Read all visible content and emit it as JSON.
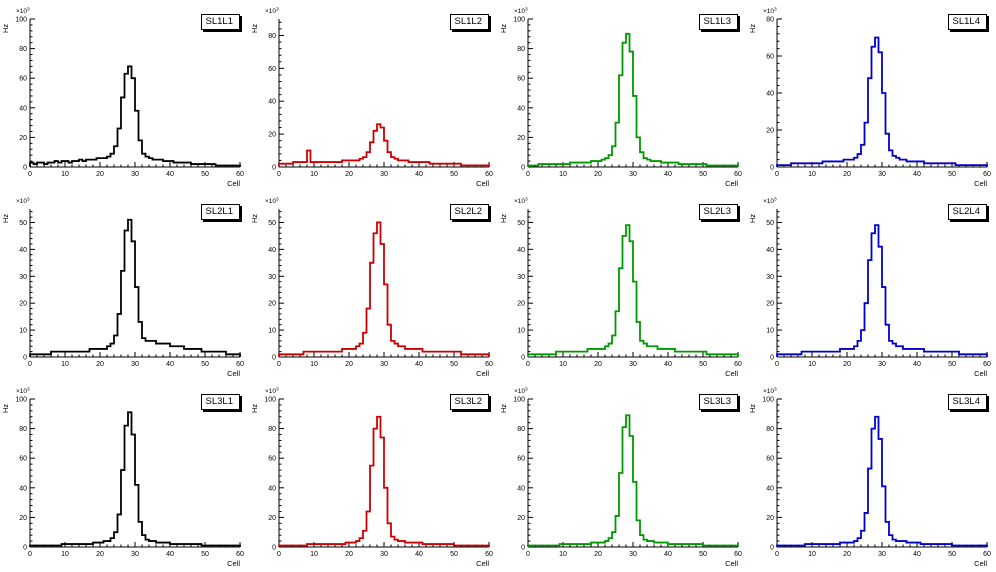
{
  "page": {
    "background": "#ffffff"
  },
  "chart_data": [
    {
      "type": "bar",
      "title": "SL1L1",
      "color": "#000000",
      "xlabel": "Cell",
      "ylabel": "Hz",
      "y_scale_base": "×10",
      "y_scale_exp": "3",
      "xlim": [
        0,
        60
      ],
      "ylim": [
        0,
        100
      ],
      "xticks": [
        0,
        10,
        20,
        30,
        40,
        50,
        60
      ],
      "yticks": [
        0,
        20,
        40,
        60,
        80,
        100
      ],
      "bin_width": 1,
      "values": [
        3,
        2,
        3,
        3,
        2,
        3,
        3,
        4,
        3,
        4,
        4,
        3,
        4,
        4,
        5,
        4,
        5,
        5,
        5,
        6,
        6,
        6,
        7,
        9,
        14,
        26,
        47,
        63,
        68,
        60,
        38,
        18,
        9,
        7,
        6,
        5,
        5,
        5,
        4,
        4,
        4,
        3,
        3,
        3,
        3,
        3,
        2,
        2,
        2,
        2,
        2,
        2,
        2,
        1,
        1,
        1,
        1,
        1,
        1,
        1
      ]
    },
    {
      "type": "bar",
      "title": "SL1L2",
      "color": "#cc0000",
      "xlabel": "Cell",
      "ylabel": "Hz",
      "y_scale_base": "×10",
      "y_scale_exp": "3",
      "xlim": [
        0,
        60
      ],
      "ylim": [
        0,
        90
      ],
      "xticks": [
        0,
        10,
        20,
        30,
        40,
        50,
        60
      ],
      "yticks": [
        0,
        20,
        40,
        60,
        80
      ],
      "bin_width": 1,
      "values": [
        2,
        2,
        2,
        2,
        3,
        3,
        3,
        3,
        10,
        3,
        3,
        3,
        3,
        3,
        3,
        3,
        3,
        3,
        4,
        4,
        4,
        4,
        4,
        5,
        6,
        9,
        15,
        22,
        26,
        24,
        16,
        9,
        6,
        5,
        4,
        4,
        4,
        3,
        3,
        3,
        3,
        3,
        3,
        2,
        2,
        2,
        2,
        2,
        2,
        2,
        2,
        2,
        1,
        1,
        1,
        1,
        1,
        1,
        1,
        1
      ]
    },
    {
      "type": "bar",
      "title": "SL1L3",
      "color": "#009900",
      "xlabel": "Cell",
      "ylabel": "Hz",
      "y_scale_base": "×10",
      "y_scale_exp": "3",
      "xlim": [
        0,
        60
      ],
      "ylim": [
        0,
        100
      ],
      "xticks": [
        0,
        10,
        20,
        30,
        40,
        50,
        60
      ],
      "yticks": [
        0,
        20,
        40,
        60,
        80,
        100
      ],
      "bin_width": 1,
      "values": [
        1,
        1,
        1,
        2,
        2,
        2,
        2,
        2,
        2,
        2,
        2,
        2,
        3,
        3,
        3,
        3,
        3,
        3,
        4,
        4,
        4,
        5,
        6,
        8,
        14,
        30,
        62,
        84,
        90,
        78,
        48,
        20,
        10,
        6,
        5,
        4,
        4,
        4,
        3,
        3,
        3,
        3,
        3,
        2,
        2,
        2,
        2,
        2,
        2,
        2,
        2,
        1,
        1,
        1,
        1,
        1,
        1,
        1,
        1,
        1
      ]
    },
    {
      "type": "bar",
      "title": "SL1L4",
      "color": "#0000cc",
      "xlabel": "Cell",
      "ylabel": "Hz",
      "y_scale_base": "×10",
      "y_scale_exp": "3",
      "xlim": [
        0,
        60
      ],
      "ylim": [
        0,
        80
      ],
      "xticks": [
        0,
        10,
        20,
        30,
        40,
        50,
        60
      ],
      "yticks": [
        0,
        20,
        40,
        60,
        80
      ],
      "bin_width": 1,
      "values": [
        1,
        1,
        1,
        1,
        2,
        2,
        2,
        2,
        2,
        2,
        2,
        2,
        2,
        3,
        3,
        3,
        3,
        3,
        3,
        4,
        4,
        4,
        5,
        7,
        12,
        24,
        48,
        65,
        70,
        62,
        40,
        18,
        9,
        6,
        5,
        4,
        4,
        3,
        3,
        3,
        3,
        3,
        2,
        2,
        2,
        2,
        2,
        2,
        2,
        2,
        2,
        1,
        1,
        1,
        1,
        1,
        1,
        1,
        1,
        1
      ]
    },
    {
      "type": "bar",
      "title": "SL2L1",
      "color": "#000000",
      "xlabel": "Cell",
      "ylabel": "Hz",
      "y_scale_base": "×10",
      "y_scale_exp": "3",
      "xlim": [
        0,
        60
      ],
      "ylim": [
        0,
        55
      ],
      "xticks": [
        0,
        10,
        20,
        30,
        40,
        50,
        60
      ],
      "yticks": [
        0,
        10,
        20,
        30,
        40,
        50
      ],
      "bin_width": 1,
      "values": [
        1,
        1,
        1,
        1,
        1,
        1,
        2,
        2,
        2,
        2,
        2,
        2,
        2,
        2,
        2,
        2,
        2,
        3,
        3,
        3,
        3,
        3,
        4,
        5,
        8,
        16,
        32,
        47,
        51,
        43,
        26,
        13,
        7,
        6,
        6,
        6,
        5,
        5,
        5,
        5,
        4,
        4,
        4,
        4,
        3,
        3,
        3,
        3,
        3,
        2,
        2,
        2,
        2,
        2,
        2,
        2,
        1,
        1,
        1,
        1
      ]
    },
    {
      "type": "bar",
      "title": "SL2L2",
      "color": "#cc0000",
      "xlabel": "Cell",
      "ylabel": "Hz",
      "y_scale_base": "×10",
      "y_scale_exp": "3",
      "xlim": [
        0,
        60
      ],
      "ylim": [
        0,
        55
      ],
      "xticks": [
        0,
        10,
        20,
        30,
        40,
        50,
        60
      ],
      "yticks": [
        0,
        10,
        20,
        30,
        40,
        50
      ],
      "bin_width": 1,
      "values": [
        1,
        1,
        1,
        1,
        1,
        1,
        1,
        2,
        2,
        2,
        2,
        2,
        2,
        2,
        2,
        2,
        2,
        2,
        3,
        3,
        3,
        3,
        4,
        5,
        9,
        18,
        35,
        46,
        50,
        42,
        27,
        12,
        6,
        5,
        4,
        4,
        3,
        3,
        3,
        3,
        3,
        2,
        2,
        2,
        2,
        2,
        2,
        2,
        2,
        2,
        2,
        2,
        1,
        1,
        1,
        1,
        1,
        1,
        1,
        1
      ]
    },
    {
      "type": "bar",
      "title": "SL2L3",
      "color": "#009900",
      "xlabel": "Cell",
      "ylabel": "Hz",
      "y_scale_base": "×10",
      "y_scale_exp": "3",
      "xlim": [
        0,
        60
      ],
      "ylim": [
        0,
        55
      ],
      "xticks": [
        0,
        10,
        20,
        30,
        40,
        50,
        60
      ],
      "yticks": [
        0,
        10,
        20,
        30,
        40,
        50
      ],
      "bin_width": 1,
      "values": [
        1,
        1,
        1,
        1,
        1,
        1,
        1,
        1,
        2,
        2,
        2,
        2,
        2,
        2,
        2,
        2,
        2,
        3,
        3,
        3,
        3,
        3,
        4,
        5,
        8,
        17,
        33,
        45,
        49,
        43,
        28,
        13,
        6,
        5,
        4,
        4,
        4,
        3,
        3,
        3,
        3,
        3,
        2,
        2,
        2,
        2,
        2,
        2,
        2,
        2,
        2,
        1,
        1,
        1,
        1,
        1,
        1,
        1,
        1,
        1
      ]
    },
    {
      "type": "bar",
      "title": "SL2L4",
      "color": "#0000cc",
      "xlabel": "Cell",
      "ylabel": "Hz",
      "y_scale_base": "×10",
      "y_scale_exp": "3",
      "xlim": [
        0,
        60
      ],
      "ylim": [
        0,
        55
      ],
      "xticks": [
        0,
        10,
        20,
        30,
        40,
        50,
        60
      ],
      "yticks": [
        0,
        10,
        20,
        30,
        40,
        50
      ],
      "bin_width": 1,
      "values": [
        1,
        1,
        1,
        1,
        1,
        1,
        1,
        2,
        2,
        2,
        2,
        2,
        2,
        2,
        2,
        2,
        2,
        2,
        3,
        3,
        3,
        3,
        4,
        6,
        10,
        20,
        36,
        46,
        49,
        41,
        26,
        12,
        6,
        5,
        4,
        4,
        3,
        3,
        3,
        3,
        3,
        3,
        2,
        2,
        2,
        2,
        2,
        2,
        2,
        2,
        2,
        2,
        1,
        1,
        1,
        1,
        1,
        1,
        1,
        1
      ]
    },
    {
      "type": "bar",
      "title": "SL3L1",
      "color": "#000000",
      "xlabel": "Cell",
      "ylabel": "Hz",
      "y_scale_base": "×10",
      "y_scale_exp": "3",
      "xlim": [
        0,
        60
      ],
      "ylim": [
        0,
        100
      ],
      "xticks": [
        0,
        10,
        20,
        30,
        40,
        50,
        60
      ],
      "yticks": [
        0,
        20,
        40,
        60,
        80,
        100
      ],
      "bin_width": 1,
      "values": [
        1,
        1,
        1,
        1,
        1,
        1,
        1,
        1,
        1,
        2,
        2,
        2,
        2,
        2,
        2,
        2,
        2,
        2,
        3,
        3,
        3,
        4,
        4,
        6,
        10,
        22,
        52,
        82,
        91,
        76,
        42,
        17,
        8,
        5,
        4,
        4,
        3,
        3,
        3,
        3,
        2,
        2,
        2,
        2,
        2,
        2,
        2,
        2,
        2,
        1,
        1,
        1,
        1,
        1,
        1,
        1,
        1,
        1,
        1,
        1
      ]
    },
    {
      "type": "bar",
      "title": "SL3L2",
      "color": "#cc0000",
      "xlabel": "Cell",
      "ylabel": "Hz",
      "y_scale_base": "×10",
      "y_scale_exp": "3",
      "xlim": [
        0,
        60
      ],
      "ylim": [
        0,
        100
      ],
      "xticks": [
        0,
        10,
        20,
        30,
        40,
        50,
        60
      ],
      "yticks": [
        0,
        20,
        40,
        60,
        80,
        100
      ],
      "bin_width": 1,
      "values": [
        1,
        1,
        1,
        1,
        1,
        1,
        1,
        1,
        2,
        2,
        2,
        2,
        2,
        2,
        2,
        2,
        2,
        2,
        2,
        3,
        3,
        3,
        4,
        6,
        11,
        24,
        55,
        80,
        88,
        74,
        40,
        16,
        7,
        5,
        4,
        4,
        3,
        3,
        3,
        3,
        3,
        2,
        2,
        2,
        2,
        2,
        2,
        2,
        2,
        2,
        1,
        1,
        1,
        1,
        1,
        1,
        1,
        1,
        1,
        1
      ]
    },
    {
      "type": "bar",
      "title": "SL3L3",
      "color": "#009900",
      "xlabel": "Cell",
      "ylabel": "Hz",
      "y_scale_base": "×10",
      "y_scale_exp": "3",
      "xlim": [
        0,
        60
      ],
      "ylim": [
        0,
        100
      ],
      "xticks": [
        0,
        10,
        20,
        30,
        40,
        50,
        60
      ],
      "yticks": [
        0,
        20,
        40,
        60,
        80,
        100
      ],
      "bin_width": 1,
      "values": [
        1,
        1,
        1,
        1,
        1,
        1,
        1,
        1,
        1,
        2,
        2,
        2,
        2,
        2,
        2,
        2,
        2,
        2,
        3,
        3,
        3,
        3,
        4,
        6,
        10,
        21,
        50,
        81,
        89,
        75,
        44,
        18,
        8,
        5,
        4,
        4,
        3,
        3,
        3,
        3,
        2,
        2,
        2,
        2,
        2,
        2,
        2,
        2,
        2,
        2,
        1,
        1,
        1,
        1,
        1,
        1,
        1,
        1,
        1,
        1
      ]
    },
    {
      "type": "bar",
      "title": "SL3L4",
      "color": "#0000cc",
      "xlabel": "Cell",
      "ylabel": "Hz",
      "y_scale_base": "×10",
      "y_scale_exp": "3",
      "xlim": [
        0,
        60
      ],
      "ylim": [
        0,
        100
      ],
      "xticks": [
        0,
        10,
        20,
        30,
        40,
        50,
        60
      ],
      "yticks": [
        0,
        20,
        40,
        60,
        80,
        100
      ],
      "bin_width": 1,
      "values": [
        1,
        1,
        1,
        1,
        1,
        1,
        1,
        1,
        2,
        2,
        2,
        2,
        2,
        2,
        2,
        2,
        2,
        2,
        3,
        3,
        3,
        3,
        4,
        6,
        11,
        23,
        53,
        80,
        88,
        73,
        41,
        17,
        8,
        5,
        4,
        4,
        4,
        3,
        3,
        3,
        3,
        2,
        2,
        2,
        2,
        2,
        2,
        2,
        2,
        2,
        1,
        1,
        1,
        1,
        1,
        1,
        1,
        1,
        1,
        1
      ]
    }
  ]
}
